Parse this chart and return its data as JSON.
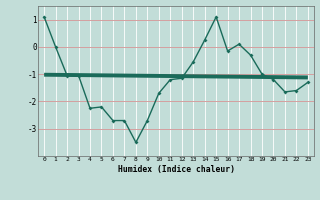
{
  "x": [
    0,
    1,
    2,
    3,
    4,
    5,
    6,
    7,
    8,
    9,
    10,
    11,
    12,
    13,
    14,
    15,
    16,
    17,
    18,
    19,
    20,
    21,
    22,
    23
  ],
  "y": [
    1.1,
    0.0,
    -1.05,
    -1.05,
    -2.25,
    -2.2,
    -2.7,
    -2.7,
    -3.5,
    -2.7,
    -1.7,
    -1.2,
    -1.15,
    -0.55,
    0.25,
    1.1,
    -0.15,
    0.1,
    -0.3,
    -1.0,
    -1.2,
    -1.65,
    -1.6,
    -1.3
  ],
  "trend_x": [
    0,
    23
  ],
  "trend_y": [
    -1.02,
    -1.12
  ],
  "line_color": "#1a6b5a",
  "trend_color": "#1a6b5a",
  "bg_color": "#c2ddd8",
  "vgrid_color": "#ffffff",
  "hgrid_color": "#d4a0a0",
  "xlabel": "Humidex (Indice chaleur)",
  "ylim": [
    -4.0,
    1.5
  ],
  "xlim": [
    -0.5,
    23.5
  ],
  "yticks": [
    1,
    0,
    -1,
    -2,
    -3
  ],
  "xticks": [
    0,
    1,
    2,
    3,
    4,
    5,
    6,
    7,
    8,
    9,
    10,
    11,
    12,
    13,
    14,
    15,
    16,
    17,
    18,
    19,
    20,
    21,
    22,
    23
  ]
}
